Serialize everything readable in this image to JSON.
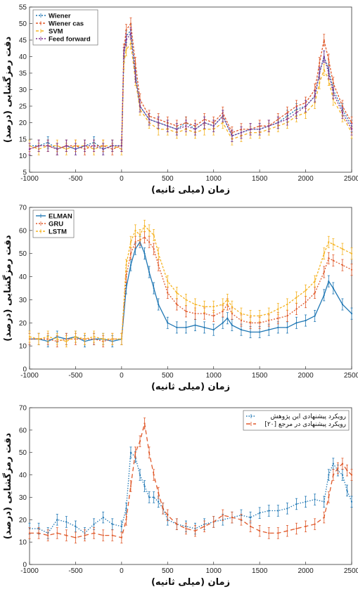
{
  "colors": {
    "blue": "#1f77b4",
    "orange": "#e0592a",
    "yellow": "#f5b321",
    "purple": "#7e2f8e"
  },
  "chart_data": [
    {
      "type": "line",
      "xlabel": "زمان (میلی ثانیه)",
      "ylabel": "دقت رمزگشایی (درصد)",
      "xlim": [
        -1000,
        2500
      ],
      "ylim": [
        5,
        55
      ],
      "xticks": [
        -1000,
        -500,
        0,
        500,
        1000,
        1500,
        2000,
        2500
      ],
      "yticks": [
        5,
        10,
        15,
        20,
        25,
        30,
        35,
        40,
        45,
        50,
        55
      ],
      "error_bars": true,
      "legend_position": "top-left",
      "series": [
        {
          "name": "Wiener",
          "color": "#1f77b4",
          "x": [
            -1000,
            -900,
            -800,
            -700,
            -600,
            -500,
            -400,
            -300,
            -200,
            -100,
            0,
            25,
            50,
            100,
            150,
            200,
            300,
            400,
            500,
            600,
            700,
            800,
            900,
            1000,
            1100,
            1200,
            1300,
            1400,
            1500,
            1600,
            1700,
            1800,
            1900,
            2000,
            2100,
            2150,
            2200,
            2250,
            2300,
            2400,
            2500
          ],
          "y": [
            13,
            13,
            14,
            12,
            13,
            12,
            13,
            14,
            12,
            13,
            13,
            40,
            46,
            48,
            35,
            25,
            21,
            20,
            19,
            18,
            20,
            18,
            20,
            19,
            22,
            16,
            17,
            18,
            18,
            19,
            20,
            22,
            24,
            25,
            28,
            35,
            40,
            36,
            30,
            24,
            19
          ]
        },
        {
          "name": "Wiener cas",
          "color": "#e0592a",
          "x": [
            -1000,
            -900,
            -800,
            -700,
            -600,
            -500,
            -400,
            -300,
            -200,
            -100,
            0,
            25,
            50,
            100,
            150,
            200,
            300,
            400,
            500,
            600,
            700,
            800,
            900,
            1000,
            1100,
            1200,
            1300,
            1400,
            1500,
            1600,
            1700,
            1800,
            1900,
            2000,
            2100,
            2150,
            2200,
            2250,
            2300,
            2400,
            2500
          ],
          "y": [
            12,
            13,
            13,
            12,
            13,
            13,
            12,
            13,
            13,
            12,
            13,
            42,
            48,
            50,
            38,
            27,
            22,
            21,
            20,
            19,
            20,
            19,
            21,
            20,
            23,
            17,
            18,
            18,
            19,
            19,
            21,
            23,
            25,
            26,
            30,
            38,
            45,
            39,
            32,
            25,
            20
          ]
        },
        {
          "name": "SVM",
          "color": "#f5b321",
          "x": [
            -1000,
            -900,
            -800,
            -700,
            -600,
            -500,
            -400,
            -300,
            -200,
            -100,
            0,
            25,
            50,
            100,
            150,
            200,
            300,
            400,
            500,
            600,
            700,
            800,
            900,
            1000,
            1100,
            1200,
            1300,
            1400,
            1500,
            1600,
            1700,
            1800,
            1900,
            2000,
            2100,
            2150,
            2200,
            2250,
            2300,
            2400,
            2500
          ],
          "y": [
            13,
            12,
            13,
            13,
            12,
            13,
            13,
            12,
            13,
            13,
            12,
            38,
            42,
            44,
            33,
            24,
            20,
            18,
            18,
            17,
            18,
            17,
            18,
            18,
            20,
            15,
            16,
            17,
            17,
            18,
            19,
            20,
            22,
            23,
            26,
            32,
            36,
            33,
            27,
            22,
            17
          ]
        },
        {
          "name": "Feed forward",
          "color": "#7e2f8e",
          "x": [
            -1000,
            -900,
            -800,
            -700,
            -600,
            -500,
            -400,
            -300,
            -200,
            -100,
            0,
            25,
            50,
            100,
            150,
            200,
            300,
            400,
            500,
            600,
            700,
            800,
            900,
            1000,
            1100,
            1200,
            1300,
            1400,
            1500,
            1600,
            1700,
            1800,
            1900,
            2000,
            2100,
            2150,
            2200,
            2250,
            2300,
            2400,
            2500
          ],
          "y": [
            12,
            13,
            13,
            12,
            13,
            12,
            13,
            13,
            12,
            13,
            13,
            41,
            45,
            47,
            34,
            25,
            21,
            20,
            19,
            18,
            19,
            18,
            20,
            19,
            22,
            16,
            17,
            18,
            18,
            19,
            20,
            21,
            23,
            25,
            28,
            35,
            40,
            35,
            29,
            23,
            18
          ]
        }
      ]
    },
    {
      "type": "line",
      "xlabel": "زمان (میلی ثانیه)",
      "ylabel": "دقت رمزگشایی (درصد)",
      "xlim": [
        -1000,
        2500
      ],
      "ylim": [
        0,
        70
      ],
      "xticks": [
        -1000,
        -500,
        0,
        500,
        1000,
        1500,
        2000,
        2500
      ],
      "yticks": [
        0,
        10,
        20,
        30,
        40,
        50,
        60,
        70
      ],
      "error_bars": true,
      "legend_position": "top-left",
      "series": [
        {
          "name": "ELMAN",
          "color": "#1f77b4",
          "x": [
            -1000,
            -900,
            -800,
            -700,
            -600,
            -500,
            -400,
            -300,
            -200,
            -100,
            0,
            50,
            100,
            150,
            200,
            250,
            300,
            350,
            400,
            500,
            600,
            700,
            800,
            900,
            1000,
            1100,
            1150,
            1200,
            1300,
            1400,
            1500,
            1600,
            1700,
            1800,
            1900,
            2000,
            2100,
            2200,
            2250,
            2300,
            2400,
            2500
          ],
          "y": [
            13,
            13,
            12,
            14,
            13,
            14,
            12,
            13,
            13,
            12,
            13,
            35,
            45,
            52,
            55,
            50,
            42,
            35,
            28,
            20,
            18,
            18,
            19,
            18,
            17,
            20,
            22,
            19,
            17,
            16,
            16,
            17,
            18,
            18,
            20,
            21,
            23,
            32,
            38,
            35,
            28,
            24
          ]
        },
        {
          "name": "GRU",
          "color": "#e0592a",
          "x": [
            -1000,
            -900,
            -800,
            -700,
            -600,
            -500,
            -400,
            -300,
            -200,
            -100,
            0,
            50,
            100,
            150,
            200,
            250,
            300,
            350,
            400,
            500,
            600,
            700,
            800,
            900,
            1000,
            1100,
            1150,
            1200,
            1300,
            1400,
            1500,
            1600,
            1700,
            1800,
            1900,
            2000,
            2100,
            2200,
            2250,
            2300,
            2400,
            2500
          ],
          "y": [
            13,
            13,
            13,
            12,
            13,
            13,
            13,
            13,
            12,
            13,
            13,
            40,
            50,
            55,
            56,
            57,
            55,
            52,
            45,
            33,
            28,
            25,
            24,
            24,
            23,
            25,
            28,
            24,
            21,
            20,
            20,
            21,
            22,
            23,
            26,
            29,
            33,
            42,
            48,
            47,
            45,
            43
          ]
        },
        {
          "name": "LSTM",
          "color": "#f5b321",
          "x": [
            -1000,
            -900,
            -800,
            -700,
            -600,
            -500,
            -400,
            -300,
            -200,
            -100,
            0,
            50,
            100,
            150,
            200,
            250,
            300,
            350,
            400,
            500,
            600,
            700,
            800,
            900,
            1000,
            1100,
            1150,
            1200,
            1300,
            1400,
            1500,
            1600,
            1700,
            1800,
            1900,
            2000,
            2100,
            2200,
            2250,
            2300,
            2400,
            2500
          ],
          "y": [
            14,
            13,
            14,
            13,
            12,
            14,
            13,
            14,
            13,
            13,
            13,
            45,
            55,
            60,
            58,
            62,
            60,
            58,
            50,
            38,
            33,
            30,
            28,
            27,
            27,
            28,
            30,
            27,
            24,
            23,
            23,
            24,
            26,
            28,
            31,
            34,
            38,
            50,
            55,
            54,
            52,
            50
          ]
        }
      ]
    },
    {
      "type": "line",
      "xlabel": "زمان (میلی ثانیه)",
      "ylabel": "دقت رمزگشایی (درصد)",
      "xlim": [
        -1000,
        2500
      ],
      "ylim": [
        0,
        70
      ],
      "xticks": [
        -1000,
        -500,
        0,
        500,
        1000,
        1500,
        2000,
        2500
      ],
      "yticks": [
        0,
        10,
        20,
        30,
        40,
        50,
        60,
        70
      ],
      "error_bars": true,
      "legend_position": "top-right",
      "series": [
        {
          "name": "رویکرد پیشنهادی این پژوهش",
          "color": "#1f77b4",
          "x": [
            -1000,
            -900,
            -800,
            -700,
            -600,
            -500,
            -400,
            -300,
            -200,
            -100,
            0,
            50,
            100,
            150,
            200,
            250,
            300,
            350,
            400,
            450,
            500,
            600,
            700,
            800,
            900,
            1000,
            1100,
            1200,
            1300,
            1400,
            1500,
            1600,
            1700,
            1800,
            1900,
            2000,
            2100,
            2200,
            2250,
            2300,
            2350,
            2400,
            2450,
            2500
          ],
          "y": [
            16,
            16,
            14,
            20,
            19,
            17,
            14,
            18,
            21,
            18,
            17,
            25,
            50,
            48,
            40,
            35,
            30,
            30,
            28,
            25,
            20,
            18,
            17,
            16,
            18,
            19,
            20,
            21,
            22,
            21,
            23,
            24,
            24,
            25,
            27,
            28,
            29,
            28,
            40,
            45,
            42,
            40,
            33,
            28
          ]
        },
        {
          "name": "رویکرد پیشنهادی در مرجع [۲۰]",
          "color": "#e0592a",
          "x": [
            -1000,
            -900,
            -800,
            -700,
            -600,
            -500,
            -400,
            -300,
            -200,
            -100,
            0,
            50,
            100,
            150,
            200,
            250,
            300,
            350,
            400,
            450,
            500,
            600,
            700,
            800,
            900,
            1000,
            1100,
            1200,
            1300,
            1400,
            1500,
            1600,
            1700,
            1800,
            1900,
            2000,
            2100,
            2200,
            2250,
            2300,
            2350,
            2400,
            2450,
            2500
          ],
          "y": [
            14,
            14,
            13,
            14,
            13,
            12,
            13,
            14,
            13,
            13,
            12,
            20,
            35,
            50,
            55,
            63,
            50,
            40,
            32,
            25,
            22,
            18,
            16,
            15,
            17,
            19,
            22,
            21,
            20,
            17,
            15,
            14,
            14,
            15,
            16,
            17,
            18,
            21,
            30,
            40,
            43,
            45,
            42,
            40
          ]
        }
      ]
    }
  ]
}
